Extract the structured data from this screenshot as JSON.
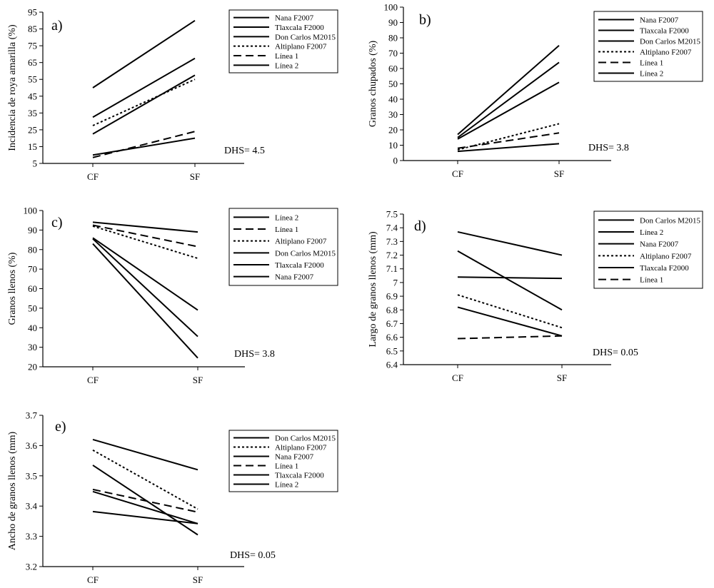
{
  "figure": {
    "panel_letters": [
      "a)",
      "b)",
      "c)",
      "d)",
      "e)"
    ]
  },
  "chart_data": [
    {
      "type": "line",
      "letter": "a)",
      "ylabel": "Incidencia de roya amarilla (%)",
      "categories": [
        "CF",
        "SF"
      ],
      "ylim": [
        5,
        95
      ],
      "yticks": [
        5,
        15,
        25,
        35,
        45,
        55,
        65,
        75,
        85,
        95
      ],
      "ytick_labels": [
        "5",
        "15",
        "25",
        "35",
        "45",
        "55",
        "65",
        "75",
        "85",
        "95"
      ],
      "annotation": "DHS= 4.5",
      "legend": [
        "Nana F2007",
        "Tlaxcala F2000",
        "Don Carlos M2015",
        "Altiplano F2007",
        "Línea 1",
        "Línea 2"
      ],
      "series": [
        {
          "name": "Nana F2007",
          "style": "solid",
          "values": [
            50,
            90
          ]
        },
        {
          "name": "Tlaxcala F2000",
          "style": "solid",
          "values": [
            32.5,
            67.5
          ]
        },
        {
          "name": "Don Carlos M2015",
          "style": "solid",
          "values": [
            22.5,
            57.5
          ]
        },
        {
          "name": "Altiplano F2007",
          "style": "dotted",
          "values": [
            27.5,
            55
          ]
        },
        {
          "name": "Línea 1",
          "style": "dashed",
          "values": [
            8.5,
            24
          ]
        },
        {
          "name": "Línea 2",
          "style": "solid",
          "values": [
            10,
            20
          ]
        }
      ]
    },
    {
      "type": "line",
      "letter": "b)",
      "ylabel": "Granos chupados (%)",
      "categories": [
        "CF",
        "SF"
      ],
      "ylim": [
        0,
        100
      ],
      "yticks": [
        0,
        10,
        20,
        30,
        40,
        50,
        60,
        70,
        80,
        90,
        100
      ],
      "ytick_labels": [
        "0",
        "10",
        "20",
        "30",
        "40",
        "50",
        "60",
        "70",
        "80",
        "90",
        "100"
      ],
      "annotation": "DHS= 3.8",
      "legend": [
        "Nana F2007",
        "Tlaxcala F2000",
        "Don Carlos M2015",
        "Altiplano F2007",
        "Línea 1",
        "Línea 2"
      ],
      "series": [
        {
          "name": "Nana F2007",
          "style": "solid",
          "values": [
            17,
            75
          ]
        },
        {
          "name": "Tlaxcala F2000",
          "style": "solid",
          "values": [
            15,
            64
          ]
        },
        {
          "name": "Don Carlos M2015",
          "style": "solid",
          "values": [
            14,
            51
          ]
        },
        {
          "name": "Altiplano F2007",
          "style": "dotted",
          "values": [
            7,
            24
          ]
        },
        {
          "name": "Línea 1",
          "style": "dashed",
          "values": [
            8,
            18
          ]
        },
        {
          "name": "Línea 2",
          "style": "solid",
          "values": [
            6,
            11
          ]
        }
      ]
    },
    {
      "type": "line",
      "letter": "c)",
      "ylabel": "Granos llenos (%)",
      "categories": [
        "CF",
        "SF"
      ],
      "ylim": [
        20,
        100
      ],
      "yticks": [
        20,
        30,
        40,
        50,
        60,
        70,
        80,
        90,
        100
      ],
      "ytick_labels": [
        "20",
        "30",
        "40",
        "50",
        "60",
        "70",
        "80",
        "90",
        "100"
      ],
      "annotation": "DHS= 3.8",
      "legend": [
        "Línea 2",
        "Línea 1",
        "Altiplano F2007",
        "Don Carlos M2015",
        "Tlaxcala F2000",
        "Nana F2007"
      ],
      "series": [
        {
          "name": "Línea 2",
          "style": "solid",
          "values": [
            94,
            89
          ]
        },
        {
          "name": "Línea 1",
          "style": "dashed",
          "values": [
            92.5,
            81.5
          ]
        },
        {
          "name": "Altiplano F2007",
          "style": "dotted",
          "values": [
            92,
            75.5
          ]
        },
        {
          "name": "Don Carlos M2015",
          "style": "solid",
          "values": [
            86,
            49
          ]
        },
        {
          "name": "Tlaxcala F2000",
          "style": "solid",
          "values": [
            85.5,
            35.5
          ]
        },
        {
          "name": "Nana F2007",
          "style": "solid",
          "values": [
            83,
            24.5
          ]
        }
      ]
    },
    {
      "type": "line",
      "letter": "d)",
      "ylabel": "Largo de granos llenos (mm)",
      "categories": [
        "CF",
        "SF"
      ],
      "ylim": [
        6.4,
        7.5
      ],
      "yticks": [
        6.4,
        6.5,
        6.6,
        6.7,
        6.8,
        6.9,
        7.0,
        7.1,
        7.2,
        7.3,
        7.4,
        7.5
      ],
      "ytick_labels": [
        "6.4",
        "6.5",
        "6.6",
        "6.7",
        "6.8",
        "6.9",
        "7",
        "7.1",
        "7.2",
        "7.3",
        "7.4",
        "7.5"
      ],
      "annotation": "DHS= 0.05",
      "legend": [
        "Don Carlos M2015",
        "Línea 2",
        "Nana F2007",
        "Altiplano F2007",
        "Tlaxcala F2000",
        "Línea 1"
      ],
      "series": [
        {
          "name": "Don Carlos M2015",
          "style": "solid",
          "values": [
            7.37,
            7.2
          ]
        },
        {
          "name": "Línea 2",
          "style": "solid",
          "values": [
            7.04,
            7.03
          ]
        },
        {
          "name": "Nana F2007",
          "style": "solid",
          "values": [
            7.23,
            6.8
          ]
        },
        {
          "name": "Altiplano F2007",
          "style": "dotted",
          "values": [
            6.91,
            6.67
          ]
        },
        {
          "name": "Tlaxcala F2000",
          "style": "solid",
          "values": [
            6.82,
            6.61
          ]
        },
        {
          "name": "Línea 1",
          "style": "dashed",
          "values": [
            6.59,
            6.61
          ]
        }
      ]
    },
    {
      "type": "line",
      "letter": "e)",
      "ylabel": "Ancho de granos llenos (mm)",
      "categories": [
        "CF",
        "SF"
      ],
      "ylim": [
        3.2,
        3.7
      ],
      "yticks": [
        3.2,
        3.3,
        3.4,
        3.5,
        3.6,
        3.7
      ],
      "ytick_labels": [
        "3.2",
        "3.3",
        "3.4",
        "3.5",
        "3.6",
        "3.7"
      ],
      "annotation": "DHS= 0.05",
      "legend": [
        "Don Carlos M2015",
        "Altiplano F2007",
        "Nana F2007",
        "Línea 1",
        "Tlaxcala F2000",
        "Línea 2"
      ],
      "series": [
        {
          "name": "Don Carlos M2015",
          "style": "solid",
          "values": [
            3.62,
            3.52
          ]
        },
        {
          "name": "Altiplano F2007",
          "style": "dotted",
          "values": [
            3.585,
            3.39
          ]
        },
        {
          "name": "Nana F2007",
          "style": "solid",
          "values": [
            3.535,
            3.305
          ]
        },
        {
          "name": "Línea 1",
          "style": "dashed",
          "values": [
            3.455,
            3.38
          ]
        },
        {
          "name": "Tlaxcala F2000",
          "style": "solid",
          "values": [
            3.448,
            3.342
          ]
        },
        {
          "name": "Línea 2",
          "style": "solid",
          "values": [
            3.382,
            3.342
          ]
        }
      ]
    }
  ]
}
